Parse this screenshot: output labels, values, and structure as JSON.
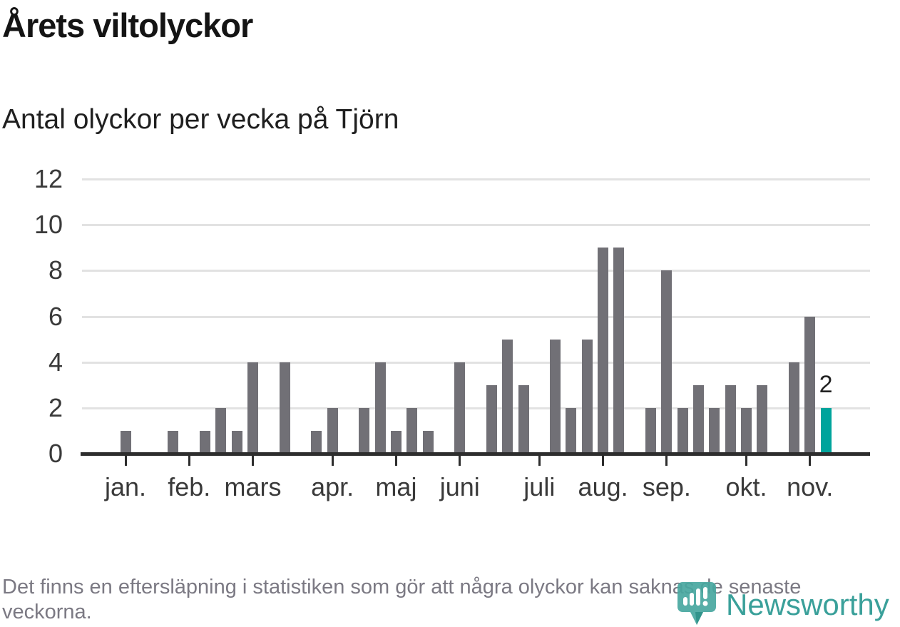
{
  "header": {
    "title": "Årets viltolyckor",
    "subtitle": "Antal olyckor per vecka på Tjörn"
  },
  "chart_data": {
    "type": "bar",
    "title": "Årets viltolyckor",
    "subtitle": "Antal olyckor per vecka på Tjörn",
    "x_unit": "vecka (week of year)",
    "values": [
      1,
      0,
      0,
      1,
      0,
      1,
      2,
      1,
      4,
      0,
      4,
      0,
      1,
      2,
      0,
      2,
      4,
      1,
      2,
      1,
      0,
      4,
      0,
      3,
      5,
      3,
      0,
      5,
      2,
      5,
      9,
      9,
      0,
      2,
      8,
      2,
      3,
      2,
      3,
      2,
      3,
      0,
      4,
      6,
      2
    ],
    "month_ticks": [
      {
        "label": "jan.",
        "week": 0
      },
      {
        "label": "feb.",
        "week": 4
      },
      {
        "label": "mars",
        "week": 8
      },
      {
        "label": "apr.",
        "week": 13
      },
      {
        "label": "maj",
        "week": 17
      },
      {
        "label": "juni",
        "week": 21
      },
      {
        "label": "juli",
        "week": 26
      },
      {
        "label": "aug.",
        "week": 30
      },
      {
        "label": "sep.",
        "week": 34
      },
      {
        "label": "okt.",
        "week": 39
      },
      {
        "label": "nov.",
        "week": 43
      }
    ],
    "yticks": [
      0,
      2,
      4,
      6,
      8,
      10,
      12
    ],
    "ylim": [
      0,
      12
    ],
    "grid": true,
    "legend": "none",
    "bar_color": "#717076",
    "highlight_color": "#00a49c",
    "highlight_last_bar": true,
    "last_bar_label": "2"
  },
  "footer": {
    "note": "Det finns en eftersläpning i statistiken som gör att några olyckor kan saknas de senaste veckorna."
  },
  "logo": {
    "text": "Newsworthy",
    "text_color": "#3aa09a",
    "icon_color": "#48a7a0",
    "icon_tail_color": "#2f9189"
  }
}
